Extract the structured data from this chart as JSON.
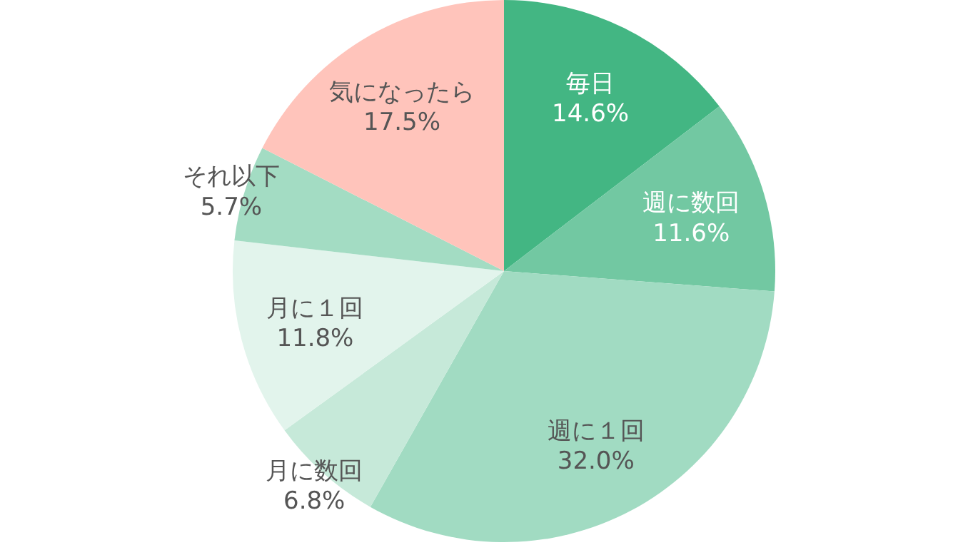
{
  "chart_data": {
    "type": "pie",
    "categories": [
      "毎日",
      "週に数回",
      "週に１回",
      "月に数回",
      "月に１回",
      "それ以下",
      "気になったら"
    ],
    "values": [
      14.6,
      11.6,
      32.0,
      6.8,
      11.8,
      5.7,
      17.5
    ],
    "value_labels": [
      "14.6%",
      "11.6%",
      "32.0%",
      "6.8%",
      "11.8%",
      "5.7%",
      "17.5%"
    ],
    "colors": [
      "#43b683",
      "#72c8a2",
      "#a1dbc2",
      "#c6e9d9",
      "#e2f4ec",
      "#a3dcc3",
      "#ffc4bb"
    ]
  }
}
